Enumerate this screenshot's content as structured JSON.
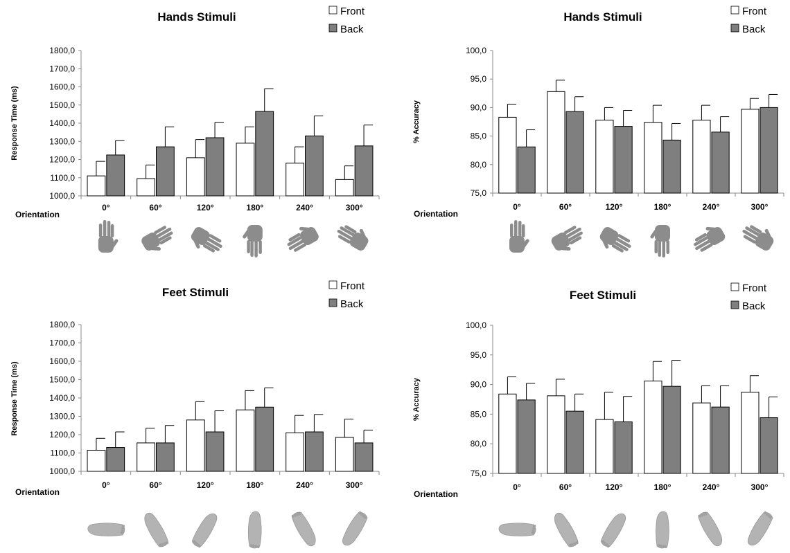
{
  "colors": {
    "front": "#ffffff",
    "back": "#7f7f7f",
    "axis": "#888888",
    "text": "#000000",
    "picture": "#8c8c8c"
  },
  "icons": {
    "hands": "hand-icon",
    "feet": "foot-icon"
  },
  "chart_data": [
    {
      "type": "bar",
      "title": "Hands Stimuli",
      "xlabel": "Orientation",
      "ylabel": "Response Time (ms)",
      "ylim": [
        1000,
        1800
      ],
      "yticks": [
        "1000,0",
        "1100,0",
        "1200,0",
        "1300,0",
        "1400,0",
        "1500,0",
        "1600,0",
        "1700,0",
        "1800,0"
      ],
      "categories": [
        "0°",
        "60°",
        "120°",
        "180°",
        "240°",
        "300°"
      ],
      "legend": "top-right",
      "grid": false,
      "series": [
        {
          "name": "Front",
          "values": [
            1110,
            1095,
            1210,
            1290,
            1180,
            1090
          ],
          "errors": [
            80,
            75,
            100,
            90,
            90,
            75
          ]
        },
        {
          "name": "Back",
          "values": [
            1225,
            1270,
            1320,
            1465,
            1330,
            1275
          ],
          "errors": [
            80,
            110,
            85,
            125,
            110,
            115
          ]
        }
      ]
    },
    {
      "type": "bar",
      "title": "Hands Stimuli",
      "xlabel": "Orientation",
      "ylabel": "% Accuracy",
      "ylim": [
        75,
        100
      ],
      "yticks": [
        "75,0",
        "80,0",
        "85,0",
        "90,0",
        "95,0",
        "100,0"
      ],
      "categories": [
        "0°",
        "60°",
        "120°",
        "180°",
        "240°",
        "300°"
      ],
      "legend": "top-right",
      "grid": false,
      "series": [
        {
          "name": "Front",
          "values": [
            88.3,
            92.8,
            87.8,
            87.4,
            87.8,
            89.7
          ],
          "errors": [
            2.3,
            2.0,
            2.2,
            3.0,
            2.6,
            1.9
          ]
        },
        {
          "name": "Back",
          "values": [
            83.1,
            89.3,
            86.7,
            84.3,
            85.7,
            90.0
          ],
          "errors": [
            3.0,
            2.6,
            2.8,
            2.9,
            2.7,
            2.3
          ]
        }
      ]
    },
    {
      "type": "bar",
      "title": "Feet Stimuli",
      "xlabel": "Orientation",
      "ylabel": "Response Time (ms)",
      "ylim": [
        1000,
        1800
      ],
      "yticks": [
        "1000,0",
        "1100,0",
        "1200,0",
        "1300,0",
        "1400,0",
        "1500,0",
        "1600,0",
        "1700,0",
        "1800,0"
      ],
      "categories": [
        "0°",
        "60°",
        "120°",
        "180°",
        "240°",
        "300°"
      ],
      "legend": "top-right",
      "grid": false,
      "series": [
        {
          "name": "Front",
          "values": [
            1115,
            1155,
            1280,
            1335,
            1210,
            1185
          ],
          "errors": [
            65,
            80,
            100,
            105,
            95,
            100
          ]
        },
        {
          "name": "Back",
          "values": [
            1130,
            1155,
            1215,
            1350,
            1215,
            1155
          ],
          "errors": [
            85,
            95,
            115,
            105,
            95,
            70
          ]
        }
      ]
    },
    {
      "type": "bar",
      "title": "Feet Stimuli",
      "xlabel": "Orientation",
      "ylabel": "% Accuracy",
      "ylim": [
        75,
        100
      ],
      "yticks": [
        "75,0",
        "80,0",
        "85,0",
        "90,0",
        "95,0",
        "100,0"
      ],
      "categories": [
        "0°",
        "60°",
        "120°",
        "180°",
        "240°",
        "300°"
      ],
      "legend": "top-right",
      "grid": false,
      "series": [
        {
          "name": "Front",
          "values": [
            88.4,
            88.1,
            84.1,
            90.6,
            86.9,
            88.7
          ],
          "errors": [
            2.9,
            2.8,
            4.6,
            3.3,
            2.9,
            2.8
          ]
        },
        {
          "name": "Back",
          "values": [
            87.4,
            85.5,
            83.7,
            89.7,
            86.2,
            84.4
          ],
          "errors": [
            2.8,
            2.9,
            4.3,
            4.4,
            3.6,
            3.5
          ]
        }
      ]
    }
  ]
}
